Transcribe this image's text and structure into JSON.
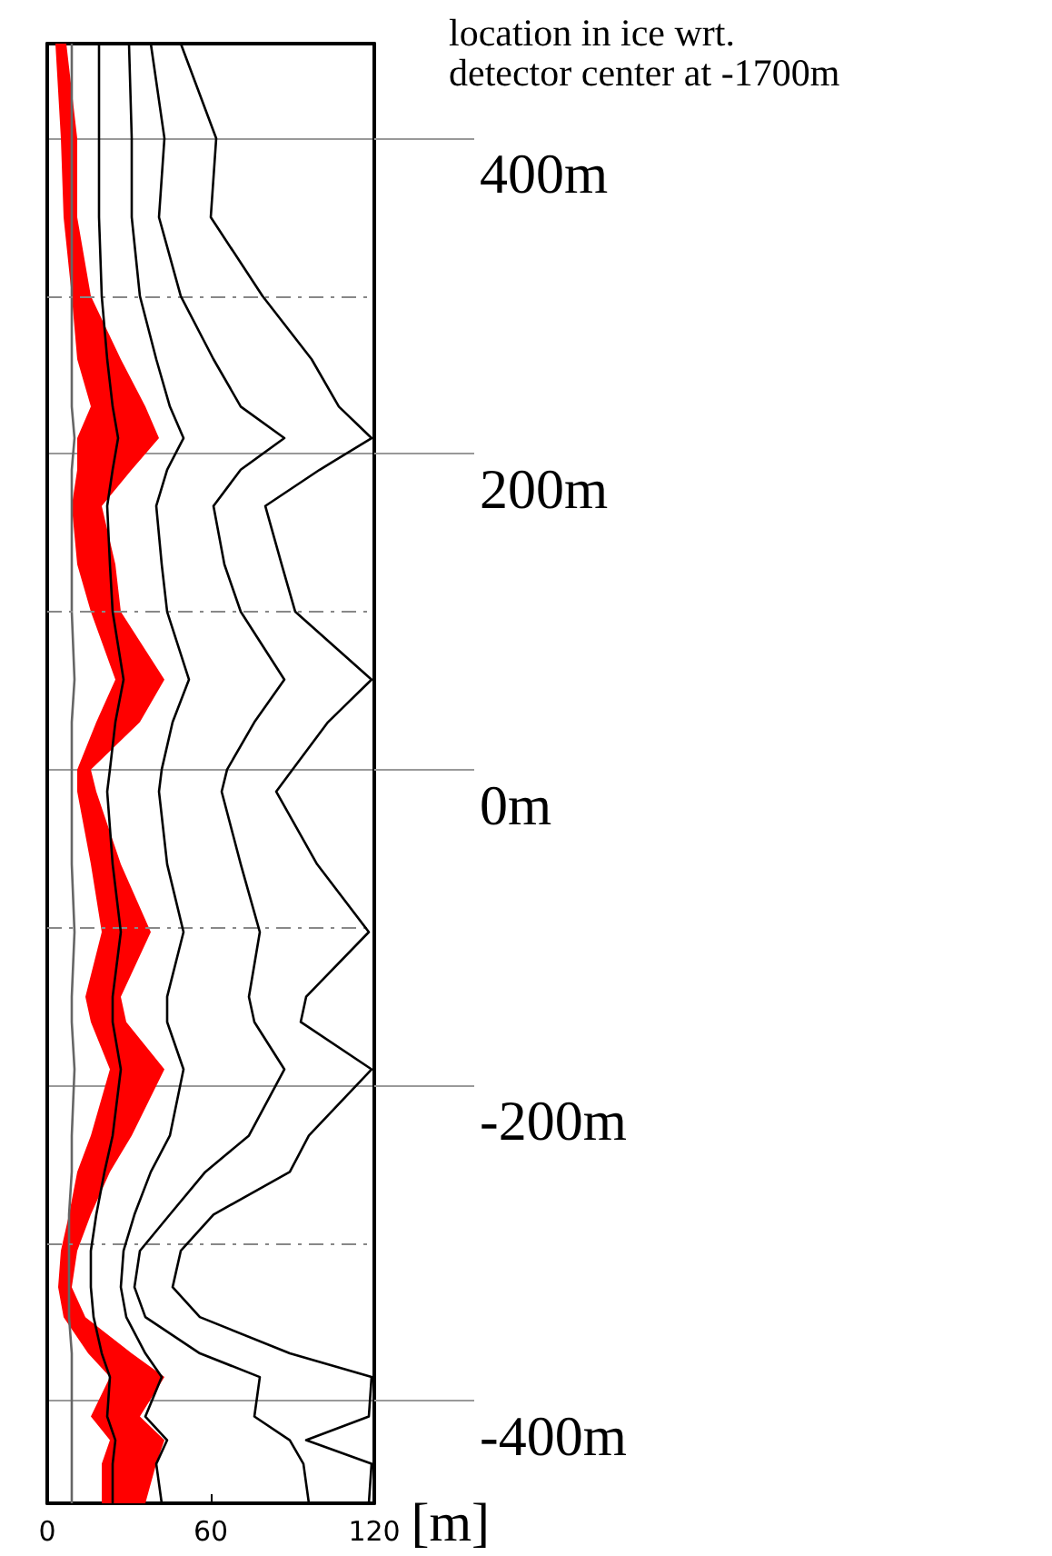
{
  "chart_data": {
    "type": "line",
    "orientation": "horizontal",
    "title": "location in ice wrt.\ndetector center at -1700m",
    "xlabel": "[m]",
    "x": [
      460,
      400,
      350,
      300,
      260,
      230,
      210,
      190,
      167,
      130,
      100,
      57,
      30,
      0,
      -14,
      -60,
      -103,
      -144,
      -160,
      -190,
      -232,
      -255,
      -282,
      -305,
      -328,
      -347,
      -370,
      -385,
      -410,
      -425,
      -440,
      -465
    ],
    "series": [
      {
        "color": "#ff0000",
        "type": "area",
        "values": [
          null,
          null,
          null,
          null,
          null,
          null,
          null,
          null,
          null,
          null,
          null,
          null,
          null,
          null,
          null,
          null,
          null,
          null,
          null,
          null,
          null,
          null,
          null,
          null,
          null,
          null,
          null,
          null,
          null,
          null,
          null,
          null
        ],
        "lower": [
          3,
          5,
          6,
          9,
          11,
          16,
          11,
          11,
          9,
          11,
          16,
          25,
          18,
          11,
          11,
          16,
          20,
          14,
          16,
          23,
          16,
          11,
          8,
          5,
          4,
          6,
          15,
          23,
          16,
          23,
          20,
          20
        ],
        "upper": [
          7,
          11,
          11,
          16,
          27,
          36,
          41,
          31,
          20,
          25,
          27,
          43,
          34,
          16,
          18,
          27,
          38,
          27,
          29,
          43,
          31,
          23,
          16,
          11,
          9,
          14,
          31,
          43,
          34,
          43,
          40,
          36
        ]
      },
      {
        "color": "#666666",
        "values": [
          9,
          9,
          9,
          9,
          9,
          9,
          10,
          9,
          9,
          9,
          9,
          10,
          9,
          9,
          9,
          9,
          10,
          9,
          9,
          10,
          9,
          9,
          8,
          8,
          8,
          8,
          9,
          9,
          9,
          9,
          9,
          9
        ]
      },
      {
        "color": "#000000",
        "values": [
          19,
          19,
          19,
          20,
          22,
          24,
          26,
          24,
          22,
          23,
          24,
          28,
          25,
          23,
          22,
          24,
          27,
          24,
          24,
          27,
          24,
          21,
          18,
          16,
          16,
          17,
          20,
          23,
          22,
          25,
          24,
          24
        ]
      },
      {
        "color": "#000000",
        "values": [
          30,
          31,
          31,
          34,
          40,
          45,
          50,
          44,
          40,
          42,
          44,
          52,
          46,
          42,
          41,
          44,
          50,
          44,
          44,
          50,
          45,
          38,
          32,
          28,
          27,
          29,
          36,
          42,
          36,
          44,
          40,
          42
        ]
      },
      {
        "color": "#000000",
        "values": [
          38,
          43,
          41,
          49,
          61,
          71,
          87,
          71,
          61,
          65,
          71,
          87,
          76,
          66,
          64,
          71,
          78,
          74,
          76,
          87,
          74,
          58,
          45,
          34,
          32,
          36,
          56,
          78,
          76,
          89,
          94,
          96
        ]
      },
      {
        "color": "#000000",
        "values": [
          49,
          62,
          60,
          79,
          97,
          107,
          119,
          100,
          80,
          86,
          91,
          119,
          103,
          90,
          84,
          99,
          118,
          95,
          93,
          119,
          96,
          89,
          61,
          49,
          46,
          56,
          89,
          119,
          118,
          95,
          119,
          118
        ]
      }
    ],
    "xlim": [
      0,
      120
    ],
    "xticks": [
      0,
      60,
      120
    ],
    "ylim": [
      -465,
      460
    ],
    "yticks": [
      {
        "value": 400,
        "label": "400m"
      },
      {
        "value": 200,
        "label": "200m"
      },
      {
        "value": 0,
        "label": "0m"
      },
      {
        "value": -200,
        "label": "-200m"
      },
      {
        "value": -400,
        "label": "-400m"
      }
    ],
    "grid": "y",
    "ref_lines": [
      {
        "axis": "y",
        "value": 300,
        "color": "#888888",
        "line_style": "dashed"
      },
      {
        "axis": "y",
        "value": 100,
        "color": "#888888",
        "line_style": "dashed"
      },
      {
        "axis": "y",
        "value": -100,
        "color": "#888888",
        "line_style": "dashed"
      },
      {
        "axis": "y",
        "value": -300,
        "color": "#888888",
        "line_style": "dashed"
      }
    ],
    "marker": "none"
  }
}
